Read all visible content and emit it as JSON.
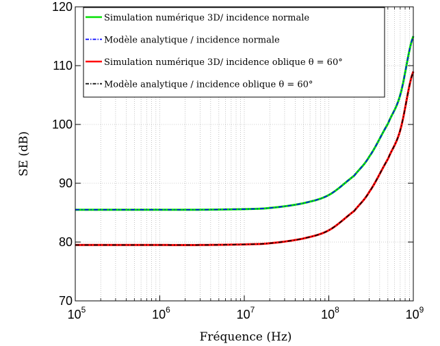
{
  "chart_data": {
    "type": "line",
    "title": "",
    "xlabel": "Fréquence (Hz)",
    "ylabel": "SE (dB)",
    "xscale": "log",
    "xlim": [
      100000,
      1000000000
    ],
    "ylim": [
      70,
      120
    ],
    "grid": true,
    "legend_position": "top",
    "x_ticks": [
      {
        "base": "10",
        "exp": "5",
        "value": 100000
      },
      {
        "base": "10",
        "exp": "6",
        "value": 1000000
      },
      {
        "base": "10",
        "exp": "7",
        "value": 10000000
      },
      {
        "base": "10",
        "exp": "8",
        "value": 100000000
      },
      {
        "base": "10",
        "exp": "9",
        "value": 1000000000
      }
    ],
    "y_ticks": [
      "70",
      "80",
      "90",
      "100",
      "110",
      "120"
    ],
    "x": [
      100000,
      1000000,
      3000000,
      10000000,
      20000000,
      50000000,
      100000000,
      200000000,
      300000000,
      500000000,
      700000000,
      1000000000
    ],
    "series": [
      {
        "name": "Simulation numérique 3D/ incidence normale",
        "color": "#00e000",
        "style": "solid",
        "values": [
          85.5,
          85.5,
          85.5,
          85.6,
          85.8,
          86.6,
          88.0,
          91.3,
          94.5,
          100.1,
          105.0,
          115.0
        ]
      },
      {
        "name": "Modèle analytique / incidence normale",
        "color": "#0000ff",
        "style": "dashdot",
        "values": [
          85.5,
          85.5,
          85.5,
          85.6,
          85.8,
          86.6,
          88.0,
          91.3,
          94.5,
          100.1,
          105.0,
          115.0
        ]
      },
      {
        "name": "Simulation numérique 3D/ incidence oblique θ = 60°",
        "color": "#ff0000",
        "style": "solid",
        "values": [
          79.5,
          79.5,
          79.5,
          79.6,
          79.8,
          80.6,
          82.0,
          85.3,
          88.5,
          94.1,
          99.0,
          109.0
        ]
      },
      {
        "name": "Modèle analytique / incidence oblique θ = 60°",
        "color": "#000000",
        "style": "dashdot",
        "values": [
          79.5,
          79.5,
          79.5,
          79.6,
          79.8,
          80.6,
          82.0,
          85.3,
          88.5,
          94.1,
          99.0,
          109.0
        ]
      }
    ]
  }
}
